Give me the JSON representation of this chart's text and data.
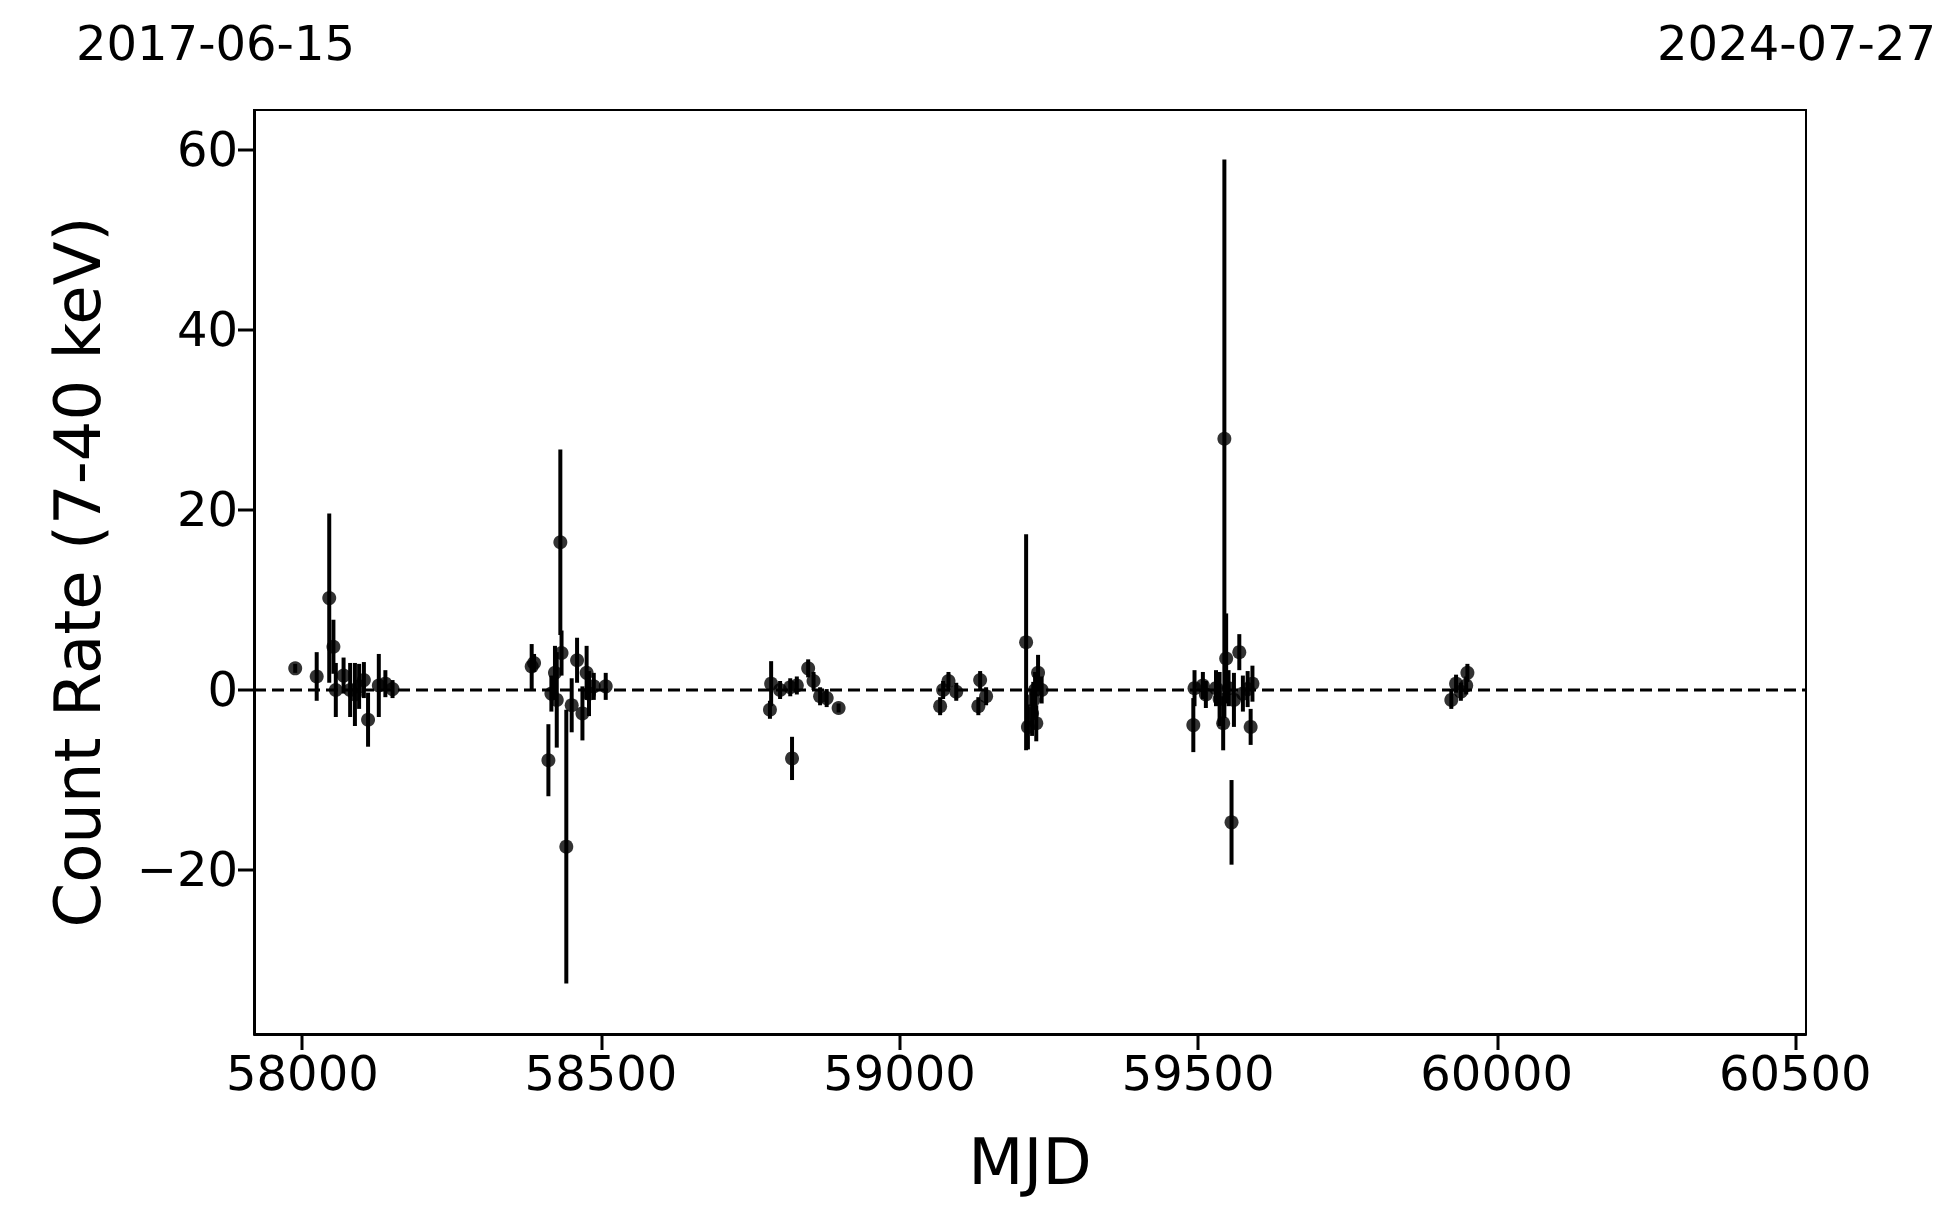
{
  "chart_data": {
    "type": "scatter",
    "xlabel": "MJD",
    "ylabel": "Count Rate (7-40 keV)",
    "marker": "circle",
    "xlim": [
      57919,
      60518
    ],
    "xticks": [
      58000,
      58500,
      59000,
      59500,
      60000,
      60500
    ],
    "annotations": [
      "2017-06-15",
      "2024-07-27"
    ],
    "ylim": [
      -38.2,
      64.4
    ],
    "yticks": [
      -20,
      0,
      20,
      40,
      60
    ],
    "ref_lines": [
      {
        "axis": "y",
        "value": 0,
        "label": null,
        "color": "#000000",
        "line_style": "dashed"
      }
    ],
    "series": [
      {
        "color": "#000000",
        "x": [
          57988,
          58024,
          58045,
          58052,
          58056,
          58069,
          58080,
          58088,
          58095,
          58103,
          58110,
          58128,
          58139,
          58151,
          58384,
          58388,
          58412,
          58417,
          58423,
          58426,
          58432,
          58434,
          58442,
          58451,
          58460,
          58469,
          58476,
          58480,
          58488,
          58508,
          58783,
          58785,
          58800,
          58817,
          58820,
          58828,
          58847,
          58856,
          58867,
          58878,
          58898,
          59068,
          59073,
          59082,
          59095,
          59132,
          59135,
          59145,
          59212,
          59215,
          59222,
          59224,
          59227,
          59229,
          59232,
          59238,
          59492,
          59494,
          59508,
          59513,
          59530,
          59536,
          59542,
          59544,
          59547,
          59551,
          59556,
          59560,
          59569,
          59575,
          59583,
          59588,
          59591,
          59924,
          59932,
          59940,
          59949,
          59951
        ],
        "values": [
          2.4,
          1.5,
          10.2,
          4.8,
          0,
          1.6,
          0,
          -0.5,
          0.4,
          1.1,
          -3.3,
          0.5,
          0.7,
          0.1,
          2.6,
          3,
          -7.8,
          -0.4,
          1.9,
          -1.1,
          16.4,
          4.1,
          -17.4,
          -1.7,
          3.3,
          -2.6,
          1.9,
          -0.4,
          0.4,
          0.4,
          -2.2,
          0.7,
          0,
          0.3,
          -7.6,
          0.5,
          2.4,
          1,
          -0.7,
          -0.9,
          -2,
          -1.8,
          0,
          1,
          -0.2,
          -1.8,
          1.1,
          -0.7,
          5.3,
          -4.1,
          -2.6,
          -1.1,
          0,
          -3.7,
          1.9,
          0,
          -3.9,
          0.2,
          0.5,
          -0.5,
          0.2,
          -1,
          -3.7,
          27.9,
          3.5,
          0.2,
          -14.7,
          -1.1,
          4.2,
          -0.4,
          0.1,
          -4.1,
          0.7,
          -1.1,
          0.7,
          -0.2,
          0.5,
          1.9
        ],
        "errors": [
          0.5,
          2.7,
          9.4,
          3,
          3,
          2,
          3,
          3.5,
          2.5,
          2,
          3,
          3.5,
          1.5,
          1,
          2.5,
          1,
          4,
          2,
          3,
          5.3,
          10.3,
          2.5,
          15.2,
          3,
          2.5,
          3,
          3,
          2.5,
          1.5,
          1.5,
          1,
          2.5,
          1,
          1,
          2.4,
          1,
          1,
          1,
          1,
          1,
          0.5,
          1,
          1,
          1,
          1,
          1,
          1,
          1,
          12,
          2.5,
          2.5,
          2,
          2,
          2,
          2,
          1.5,
          3,
          2,
          1.5,
          1.5,
          2,
          3,
          3,
          31,
          5,
          2,
          4.7,
          3,
          2,
          2,
          2,
          2,
          2,
          1,
          1,
          1,
          1,
          1
        ]
      }
    ]
  }
}
